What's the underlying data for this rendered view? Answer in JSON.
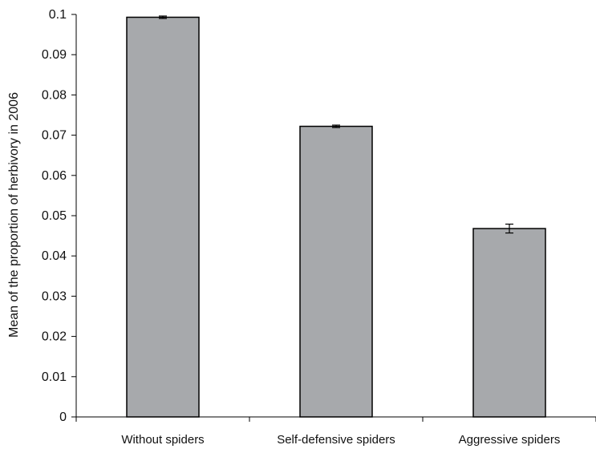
{
  "colors": {
    "bar_fill": "#a7a9ac",
    "bar_stroke": "#000000",
    "axis": "#000000"
  },
  "chart_data": {
    "type": "bar",
    "title": "",
    "xlabel": "",
    "ylabel": "Mean of  the proportion of herbivory in 2006",
    "categories": [
      "Without spiders",
      "Self-defensive spiders",
      "Aggressive spiders"
    ],
    "values": [
      0.0993,
      0.0722,
      0.0468
    ],
    "error": [
      0.0003,
      0.0003,
      0.0011
    ],
    "ylim": [
      0,
      0.1
    ],
    "yticks": [
      "0",
      "0.01",
      "0.02",
      "0.03",
      "0.04",
      "0.05",
      "0.06",
      "0.07",
      "0.08",
      "0.09",
      "0.1"
    ],
    "grid": false,
    "legend": false
  }
}
